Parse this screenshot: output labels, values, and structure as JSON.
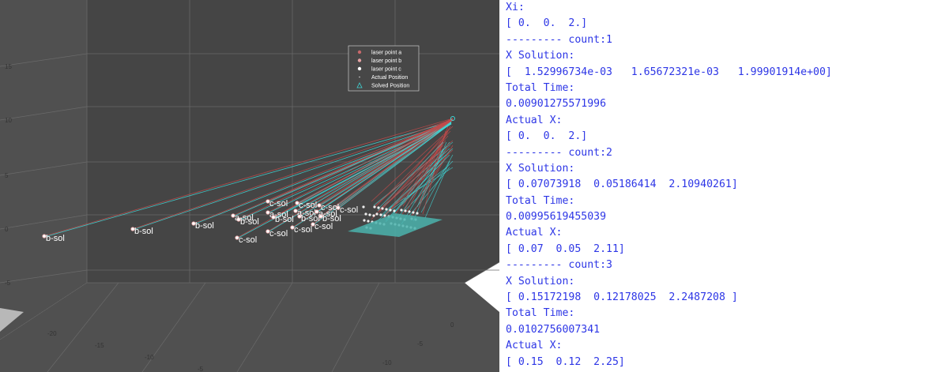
{
  "plot": {
    "legend": [
      {
        "label": "laser point a",
        "marker": "circle",
        "color": "#c8686b"
      },
      {
        "label": "laser point b",
        "marker": "circle",
        "color": "#e6a3a4"
      },
      {
        "label": "laser point c",
        "marker": "circle",
        "color": "#ffffff"
      },
      {
        "label": "Actual Position",
        "marker": "dot",
        "color": "#d9d9d9"
      },
      {
        "label": "Solved Position",
        "marker": "triangle",
        "color": "#3fd6d6"
      }
    ],
    "y_ticks": [
      "15",
      "10",
      "5",
      "0",
      "-5"
    ],
    "x_ticks": [
      "-20",
      "-15",
      "-10",
      "-5"
    ],
    "z_ticks": [
      "0",
      "-5",
      "-10"
    ],
    "colors": {
      "axes_bg": "#4a4a4a",
      "pane": "#b8b8b8",
      "red_lines": "#c24a4a",
      "cyan_lines": "#3fd6d6",
      "plane": "#4bb3ad"
    },
    "labels": [
      {
        "text": "b-sol",
        "x": 60,
        "y": 302
      },
      {
        "text": "b-sol",
        "x": 172,
        "y": 293
      },
      {
        "text": "b-sol",
        "x": 249,
        "y": 286
      },
      {
        "text": "b-sol",
        "x": 306,
        "y": 281
      },
      {
        "text": "a-sol",
        "x": 299,
        "y": 276
      },
      {
        "text": "c-sol",
        "x": 343,
        "y": 258
      },
      {
        "text": "a-sol",
        "x": 343,
        "y": 272
      },
      {
        "text": "b-sol",
        "x": 350,
        "y": 278
      },
      {
        "text": "c-sol",
        "x": 380,
        "y": 260
      },
      {
        "text": "a-sol",
        "x": 378,
        "y": 270
      },
      {
        "text": "b-sol",
        "x": 383,
        "y": 277
      },
      {
        "text": "c-sol",
        "x": 408,
        "y": 263
      },
      {
        "text": "a-sol",
        "x": 405,
        "y": 271
      },
      {
        "text": "b-sol",
        "x": 410,
        "y": 277
      },
      {
        "text": "c-sol",
        "x": 432,
        "y": 266
      },
      {
        "text": "c-sol",
        "x": 304,
        "y": 304
      },
      {
        "text": "c-sol",
        "x": 343,
        "y": 296
      },
      {
        "text": "c-sol",
        "x": 374,
        "y": 291
      },
      {
        "text": "c-sol",
        "x": 400,
        "y": 287
      }
    ]
  },
  "console": {
    "lines": [
      "Xi:",
      "[ 0.  0.  2.]",
      "--------- count:1",
      "X Solution:",
      "[  1.52996734e-03   1.65672321e-03   1.99901914e+00]",
      "Total Time:",
      "0.00901275571996",
      "Actual X:",
      "[ 0.  0.  2.]",
      "--------- count:2",
      "X Solution:",
      "[ 0.07073918  0.05186414  2.10940261]",
      "Total Time:",
      "0.00995619455039",
      "Actual X:",
      "[ 0.07  0.05  2.11]",
      "--------- count:3",
      "X Solution:",
      "[ 0.15172198  0.12178025  2.2487208 ]",
      "Total Time:",
      "0.0102756007341",
      "Actual X:",
      "[ 0.15  0.12  2.25]"
    ]
  }
}
